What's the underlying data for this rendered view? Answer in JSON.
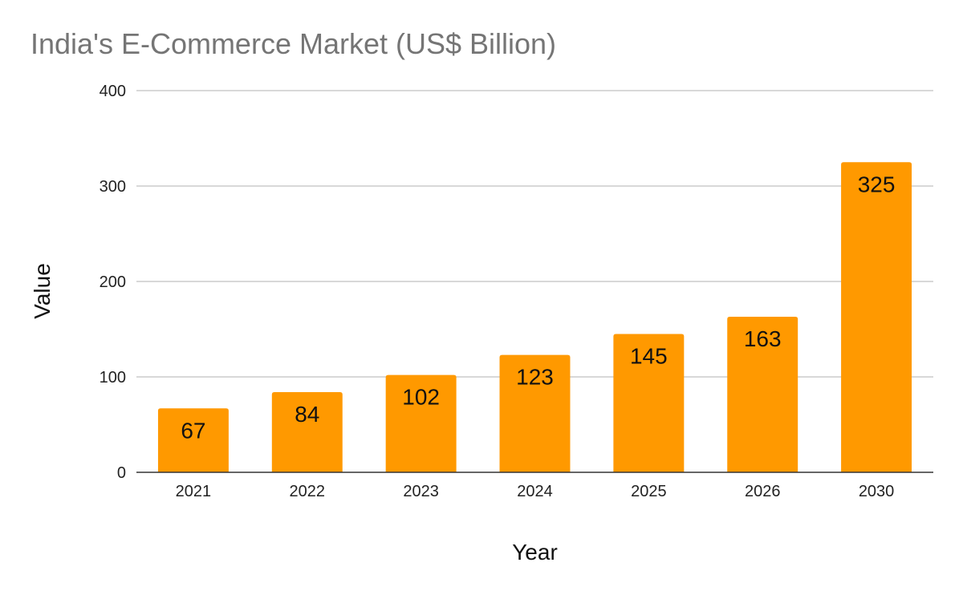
{
  "chart_data": {
    "type": "bar",
    "title": "India's E-Commerce Market (US$ Billion)",
    "xlabel": "Year",
    "ylabel": "Value",
    "categories": [
      "2021",
      "2022",
      "2023",
      "2024",
      "2025",
      "2026",
      "2030"
    ],
    "values": [
      67,
      84,
      102,
      123,
      145,
      163,
      325
    ],
    "data_labels": [
      "67",
      "84",
      "102",
      "123",
      "145",
      "163",
      "325"
    ],
    "ylim": [
      0,
      400
    ],
    "yticks": [
      "0",
      "100",
      "200",
      "300",
      "400"
    ],
    "grid": true,
    "legend": "none",
    "bar_color": "#FF9900",
    "grid_color": "#CCCCCC",
    "axis_color": "#333333",
    "title_color": "#757575"
  }
}
